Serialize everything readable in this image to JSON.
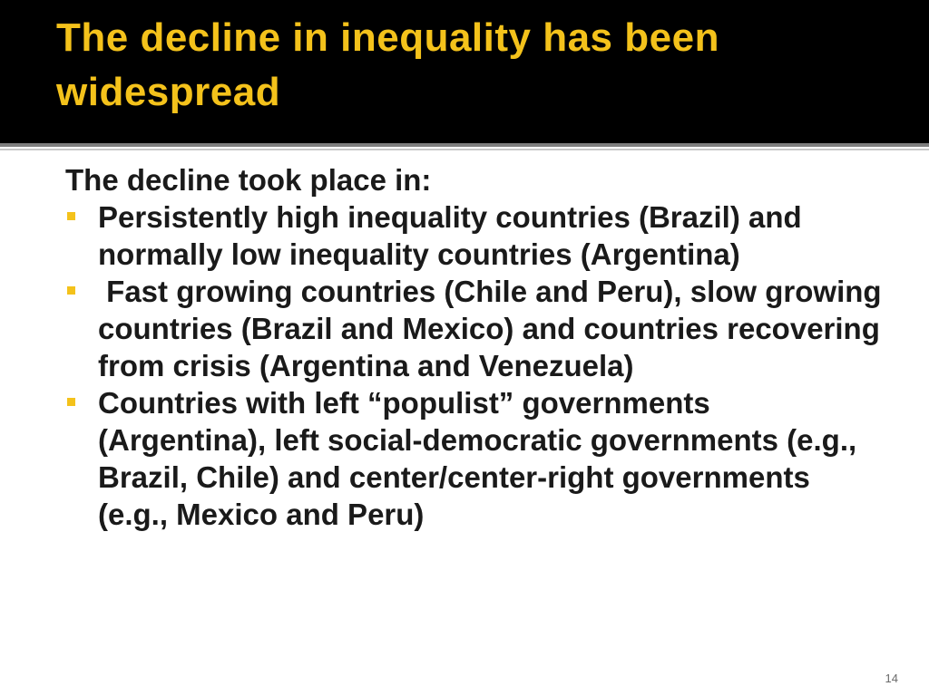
{
  "slide": {
    "title": "The decline in inequality has been widespread",
    "intro": "The decline took place in:",
    "bullets": [
      "Persistently high inequality countries (Brazil) and normally low inequality countries (Argentina)",
      " Fast growing countries (Chile and Peru), slow growing countries (Brazil and Mexico) and countries recovering from crisis (Argentina and Venezuela)",
      "Countries with left “populist” governments (Argentina), left social-democratic governments (e.g., Brazil, Chile) and center/center-right governments (e.g., Mexico and Peru)"
    ],
    "page_number": "14"
  },
  "colors": {
    "title_band": "#000000",
    "title_text": "#f4c21b",
    "bullet_marker": "#f4c21b",
    "body_text": "#1a1a1a"
  },
  "icons": {
    "bullet": "square-bullet-icon"
  }
}
